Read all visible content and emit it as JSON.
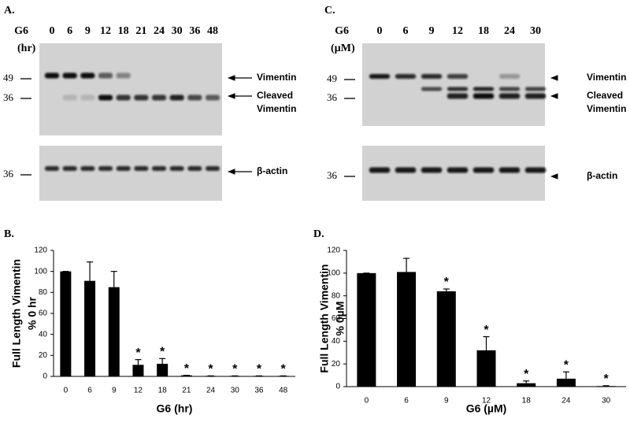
{
  "blots": [
    {
      "label": "A.",
      "row_label": [
        "G6",
        "(hr)"
      ],
      "lanes": [
        "0",
        "6",
        "9",
        "12",
        "18",
        "21",
        "24",
        "30",
        "36",
        "48"
      ],
      "markers": [
        "49",
        "36",
        "36"
      ],
      "band_labels": [
        [
          "Vimentin"
        ],
        [
          "Cleaved",
          "Vimentin"
        ],
        [
          "β-actin"
        ]
      ]
    },
    {
      "label": "C.",
      "row_label": [
        "G6",
        "(µM)"
      ],
      "lanes": [
        "0",
        "6",
        "9",
        "12",
        "18",
        "24",
        "30"
      ],
      "markers": [
        "49",
        "36",
        "36"
      ],
      "band_labels": [
        [
          "Vimentin"
        ],
        [
          "Cleaved",
          "Vimentin"
        ],
        [
          "β-actin"
        ]
      ]
    }
  ],
  "chart_data": [
    {
      "type": "bar",
      "panel_label": "B.",
      "y_label": [
        "Full Length Vimentin",
        "% 0 hr"
      ],
      "x_label": "G6 (hr)",
      "categories": [
        "0",
        "6",
        "9",
        "12",
        "18",
        "21",
        "24",
        "30",
        "36",
        "48"
      ],
      "values": [
        100,
        91,
        85,
        11,
        12,
        1,
        0.5,
        0.5,
        0.5,
        0.5
      ],
      "errors": [
        0,
        18,
        15,
        5,
        5,
        0,
        0,
        0,
        0,
        0
      ],
      "annotations": [
        null,
        null,
        null,
        "*",
        "*",
        "*",
        "*",
        "*",
        "*",
        "*"
      ],
      "color": "#000000",
      "ylim": [
        0,
        120
      ],
      "yticks": [
        0,
        20,
        40,
        60,
        80,
        100,
        120
      ],
      "grid": false
    },
    {
      "type": "bar",
      "panel_label": "D.",
      "y_label": [
        "Full Length Vimentin",
        "% 0µM"
      ],
      "x_label": "G6 (µM)",
      "categories": [
        "0",
        "6",
        "9",
        "12",
        "18",
        "24",
        "30"
      ],
      "values": [
        100,
        101,
        84,
        32,
        3,
        7,
        0.5
      ],
      "errors": [
        0,
        12,
        2,
        12,
        2,
        6,
        0.3
      ],
      "annotations": [
        null,
        null,
        "*",
        "*",
        "*",
        "*",
        "*"
      ],
      "color": "#000000",
      "ylim": [
        0,
        120
      ],
      "yticks": [
        0,
        20,
        40,
        60,
        80,
        100,
        120
      ],
      "grid": false
    }
  ]
}
